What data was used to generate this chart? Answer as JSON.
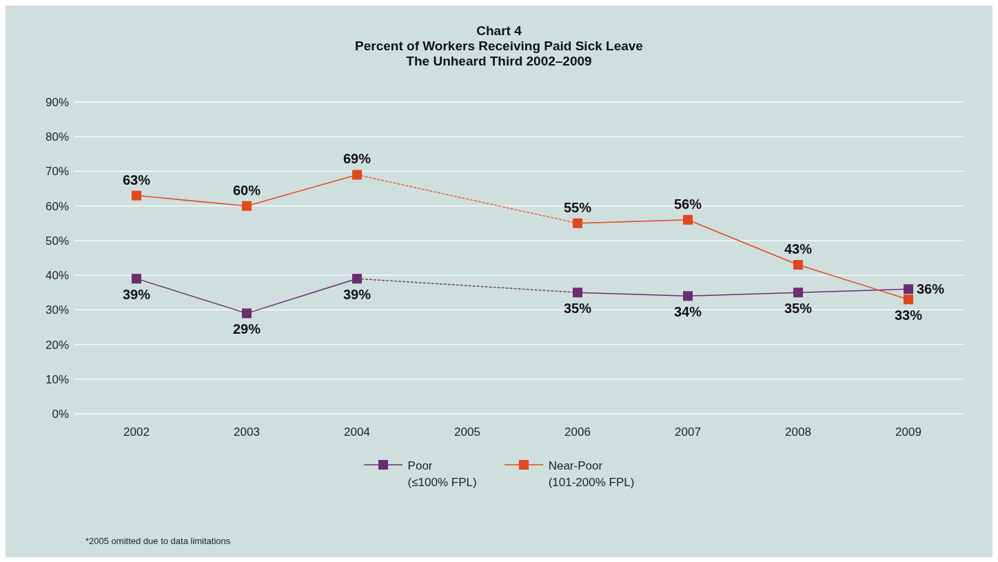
{
  "chart_data": {
    "type": "line",
    "title": "Chart 4\nPercent of Workers Receiving Paid Sick Leave\nThe Unheard Third 2002–2009",
    "categories": [
      "2002",
      "2003",
      "2004",
      "2005",
      "2006",
      "2007",
      "2008",
      "2009"
    ],
    "series": [
      {
        "name": "Poor (≤100% FPL)",
        "color": "#6b2c70",
        "values": [
          39,
          29,
          39,
          null,
          35,
          34,
          35,
          36
        ],
        "value_labels": [
          "39%",
          "29%",
          "39%",
          null,
          "35%",
          "34%",
          "35%",
          "36%"
        ]
      },
      {
        "name": "Near-Poor (101-200% FPL)",
        "color": "#e2481c",
        "values": [
          63,
          60,
          69,
          null,
          55,
          56,
          43,
          33
        ],
        "value_labels": [
          "63%",
          "60%",
          "69%",
          null,
          "55%",
          "56%",
          "43%",
          "33%"
        ]
      },
      {
        "type": "line",
        "color": "#7a3c7e",
        "values": [
          null,
          null,
          39,
          null,
          35,
          null,
          null,
          null
        ],
        "line_style": "dashed",
        "marker": "none"
      },
      {
        "type": "line",
        "color": "#e65a30",
        "values": [
          null,
          null,
          69,
          null,
          55,
          null,
          null,
          null
        ],
        "line_style": "dashed",
        "marker": "none"
      }
    ],
    "ylim": [
      0,
      90
    ],
    "yticks": [
      {
        "value": 0,
        "label": "0%"
      },
      {
        "value": 10,
        "label": "10%"
      },
      {
        "value": 20,
        "label": "20%"
      },
      {
        "value": 30,
        "label": "30%"
      },
      {
        "value": 40,
        "label": "40%"
      },
      {
        "value": 50,
        "label": "50%"
      },
      {
        "value": 60,
        "label": "60%"
      },
      {
        "value": 70,
        "label": "70%"
      },
      {
        "value": 80,
        "label": "80%"
      },
      {
        "value": 90,
        "label": "90%"
      }
    ],
    "grid": "y",
    "legend": "bottom",
    "marker": "square",
    "line_style": "solid",
    "annotations": [
      "*2005 omitted due to data limitations"
    ]
  }
}
